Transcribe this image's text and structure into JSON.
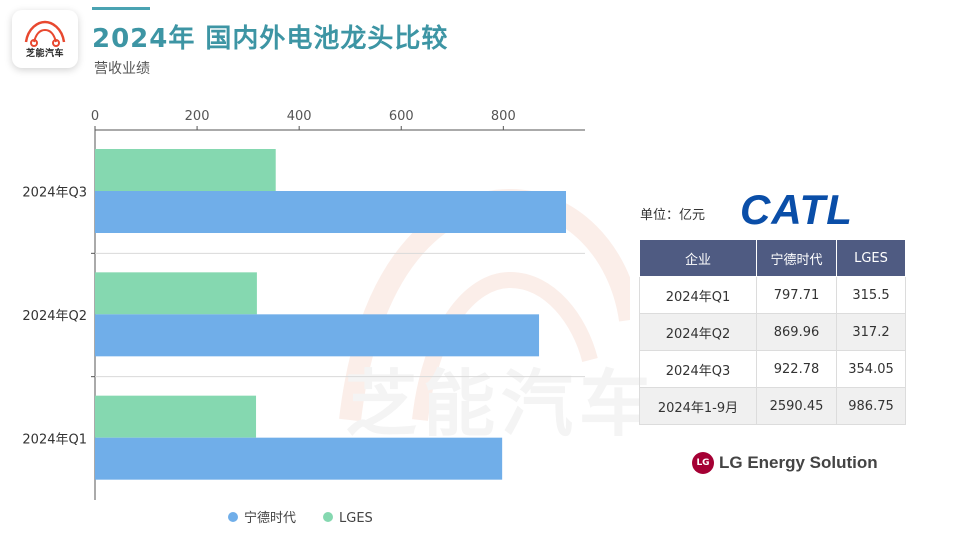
{
  "header": {
    "logo_text": "芝能汽车",
    "title": "2024年 国内外电池龙头比较",
    "subtitle": "营收业绩"
  },
  "watermark": "芝能汽车",
  "chart_data": {
    "type": "bar",
    "orientation": "horizontal",
    "categories": [
      "2024年Q3",
      "2024年Q2",
      "2024年Q1"
    ],
    "series": [
      {
        "name": "LGES",
        "values": [
          354.05,
          317.2,
          315.5
        ],
        "color": "#85d8b0"
      },
      {
        "name": "宁德时代",
        "values": [
          922.78,
          869.96,
          797.71
        ],
        "color": "#70aee9"
      }
    ],
    "xticks": [
      "0",
      "200",
      "400",
      "600",
      "800"
    ],
    "xlim": [
      0,
      960
    ],
    "axis_position": "top",
    "legend_position": "bottom",
    "grid": false
  },
  "table": {
    "unit": "单位：亿元",
    "headers": [
      "企业",
      "宁德时代",
      "LGES"
    ],
    "rows": [
      [
        "2024年Q1",
        "797.71",
        "315.5"
      ],
      [
        "2024年Q2",
        "869.96",
        "317.2"
      ],
      [
        "2024年Q3",
        "922.78",
        "354.05"
      ],
      [
        "2024年1-9月",
        "2590.45",
        "986.75"
      ]
    ]
  },
  "logos": {
    "catl": "CATL",
    "lg_mark": "LG",
    "lg": "LG Energy Solution"
  }
}
